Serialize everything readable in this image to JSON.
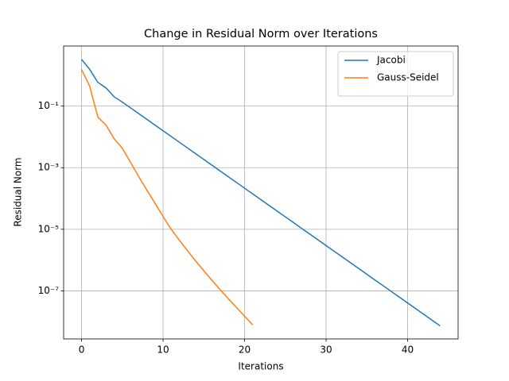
{
  "chart_data": {
    "type": "line",
    "title": "Change in Residual Norm over Iterations",
    "xlabel": "Iterations",
    "ylabel": "Residual Norm",
    "yscale": "log",
    "grid": true,
    "legend": "upper right",
    "xlim": [
      -2.2,
      46.2
    ],
    "xticks": [
      0,
      10,
      20,
      30,
      40
    ],
    "ylim": [
      2.75e-09,
      8.9
    ],
    "yticks": [
      {
        "value": 0.1,
        "label": "10⁻¹"
      },
      {
        "value": 0.001,
        "label": "10⁻³"
      },
      {
        "value": 1e-05,
        "label": "10⁻⁵"
      },
      {
        "value": 1e-07,
        "label": "10⁻⁷"
      }
    ],
    "series": [
      {
        "name": "Jacobi",
        "color": "#1f77b4",
        "x": [
          0,
          1,
          2,
          3,
          4,
          5,
          6,
          7,
          8,
          9,
          10,
          11,
          12,
          13,
          14,
          15,
          16,
          17,
          18,
          19,
          20,
          21,
          22,
          23,
          24,
          25,
          26,
          27,
          28,
          29,
          30,
          31,
          32,
          33,
          34,
          35,
          36,
          37,
          38,
          39,
          40,
          41,
          42,
          43,
          44
        ],
        "values": [
          3.3,
          1.55,
          0.59,
          0.39,
          0.2,
          0.135,
          0.0879,
          0.0572,
          0.0373,
          0.0243,
          0.0158,
          0.0103,
          0.0067,
          0.00436,
          0.00284,
          0.00185,
          0.0012,
          0.000784,
          0.00051,
          0.000332,
          0.000216,
          0.000141,
          9.18e-05,
          5.98e-05,
          3.89e-05,
          2.53e-05,
          1.65e-05,
          1.07e-05,
          6.99e-06,
          4.55e-06,
          2.96e-06,
          1.93e-06,
          1.26e-06,
          8.18e-07,
          5.32e-07,
          3.47e-07,
          2.26e-07,
          1.47e-07,
          9.57e-08,
          6.23e-08,
          4.06e-08,
          2.64e-08,
          1.72e-08,
          1.12e-08,
          7.29e-09
        ]
      },
      {
        "name": "Gauss-Seidel",
        "color": "#ff7f0e",
        "x": [
          0,
          1,
          2,
          3,
          4,
          5,
          6,
          7,
          8,
          9,
          10,
          11,
          12,
          13,
          14,
          15,
          16,
          17,
          18,
          19,
          20,
          21
        ],
        "values": [
          1.55,
          0.44,
          0.044,
          0.024,
          0.0087,
          0.0043,
          0.0015,
          0.00052,
          0.00019,
          7.1e-05,
          2.6e-05,
          1e-05,
          4.4e-06,
          2e-06,
          9.3e-07,
          4.5e-07,
          2.2e-07,
          1.1e-07,
          5.6e-08,
          2.9e-08,
          1.5e-08,
          7.9e-09
        ]
      }
    ]
  }
}
